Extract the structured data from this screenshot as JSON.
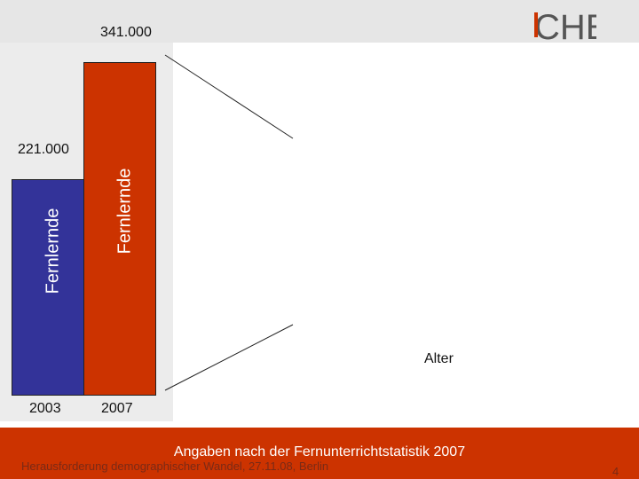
{
  "chart_data": {
    "type": "bar",
    "categories": [
      "2003",
      "2007"
    ],
    "values": [
      221000,
      341000
    ],
    "value_labels": [
      "221.000",
      "341.000"
    ],
    "bar_labels": [
      "Fernlernde",
      "Fernlernde"
    ],
    "colors": [
      "#333399",
      "#cc3300"
    ],
    "ylim": [
      0,
      341000
    ],
    "grid": false
  },
  "side_label": "Alter",
  "logo_text": "CHE",
  "footer": {
    "source": "Angaben nach der Fernunterrichtstatistik 2007",
    "event": "Herausforderung demographischer Wandel, 27.11.08, Berlin",
    "page": "4"
  },
  "colors": {
    "footer_bg": "#cc3300",
    "accent_red": "#cc3300",
    "accent_blue": "#333399"
  }
}
